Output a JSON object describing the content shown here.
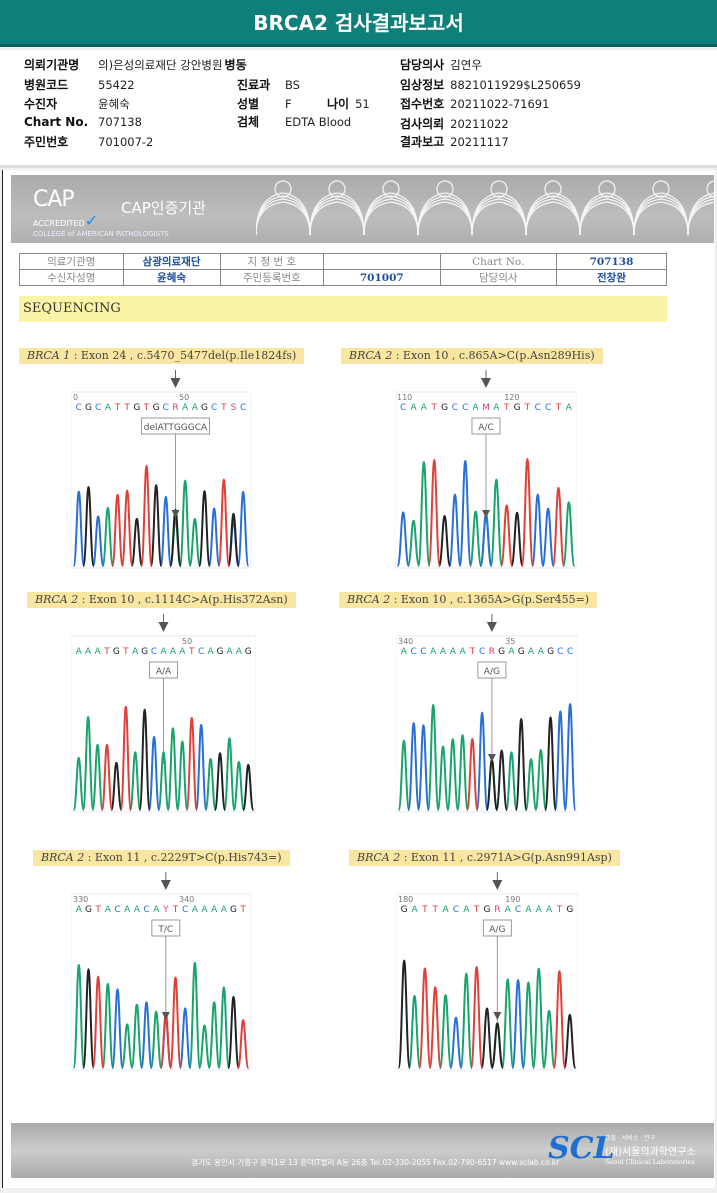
{
  "header": {
    "title": "BRCA2 검사결과보고서"
  },
  "patient": {
    "institution": {
      "label": "의뢰기관명",
      "value": "의)은성의료재단 강안병원"
    },
    "ward": {
      "label": "병동",
      "value": ""
    },
    "doctor": {
      "label": "담당의사",
      "value": "김연우"
    },
    "hospital_code": {
      "label": "병원코드",
      "value": "55422"
    },
    "department": {
      "label": "진료과",
      "value": "BS"
    },
    "clinical_info": {
      "label": "임상정보",
      "value": "8821011929$L250659"
    },
    "examinee": {
      "label": "수진자",
      "value": "윤혜숙"
    },
    "sex": {
      "label": "성별",
      "value": "F"
    },
    "age": {
      "label": "나이",
      "value": "51"
    },
    "receipt_no": {
      "label": "접수번호",
      "value": "20211022-71691"
    },
    "chart_no": {
      "label": "Chart No.",
      "value": "707138"
    },
    "specimen": {
      "label": "검체",
      "value": "EDTA Blood"
    },
    "request_date": {
      "label": "검사의뢰",
      "value": "20211022"
    },
    "resident_no": {
      "label": "주민번호",
      "value": "701007-2"
    },
    "report_date": {
      "label": "결과보고",
      "value": "20211117"
    }
  },
  "report": {
    "cap_logo": "CAP",
    "cap_accredited": "ACCREDITED",
    "cap_college": "COLLEGE of AMERICAN PATHOLOGISTS",
    "cap_title": "CAP인증기관",
    "table": {
      "inst_label": "의료기관명",
      "inst_value": "삼광의료재단",
      "desig_label": "지 정 번 호",
      "desig_value": "",
      "chart_label": "Chart No.",
      "chart_value": "707138",
      "recv_label": "수신자성명",
      "recv_value": "윤혜숙",
      "rrn_label": "주민등록번호",
      "rrn_value": "701007",
      "doc_label": "담당의사",
      "doc_value": "전창완"
    },
    "section_title": "SEQUENCING",
    "colors": {
      "A": "#1aa36b",
      "C": "#2a6fd6",
      "G": "#222222",
      "T": "#e0403a",
      "het": "#e0407a"
    },
    "panels": [
      {
        "gene": "BRCA 1",
        "detail": " : Exon 24 , c.5470_5477del(p.Ile1824fs)",
        "pos_left": "0",
        "pos_right": "50",
        "sequence": "CGCA TTGTGCRAAGCTSC",
        "call": "delATTGGGCA"
      },
      {
        "gene": "BRCA 2",
        "detail": " : Exon 10 , c.865A>C(p.Asn289His)",
        "pos_left": "110",
        "pos_right": "120",
        "sequence": "CAATGCCAMATGTCCTA",
        "call": "A/C"
      },
      {
        "gene": "BRCA 2",
        "detail": " : Exon 10 , c.1114C>A(p.His372Asn)",
        "pos_left": "",
        "pos_right": "50",
        "sequence": "AAATGTAGCAAATCAGAAG",
        "call": "A/A"
      },
      {
        "gene": "BRCA 2",
        "detail": " : Exon 10 , c.1365A>G(p.Ser455=)",
        "pos_left": "340",
        "pos_right": "35",
        "sequence": "ACCAAAATCRGAGAAGCC",
        "call": "A/G"
      },
      {
        "gene": "BRCA 2",
        "detail": " : Exon 11 , c.2229T>C(p.His743=)",
        "pos_left": "330",
        "pos_right": "340",
        "sequence": "AGTACAACAYTCAAAAGT",
        "call": "T/C"
      },
      {
        "gene": "BRCA 2",
        "detail": " : Exon 11 , c.2971A>G(p.Asn991Asp)",
        "pos_left": "180",
        "pos_right": "190",
        "sequence": "GATTACATGRACAAATG",
        "call": "A/G"
      }
    ],
    "footer": {
      "address": "경기도 용인시 기흥구 흥덕1로 13 흥덕IT밸리 A동 26층  Tel.02-330-2055  Fax.02-790-6517  www.sclab.co.kr",
      "logo": "SCL",
      "motto": "품질 · 서비스 · 연구",
      "name": "(재)서울의과학연구소",
      "name_en": "Seoul Clinical Laboratories"
    }
  }
}
